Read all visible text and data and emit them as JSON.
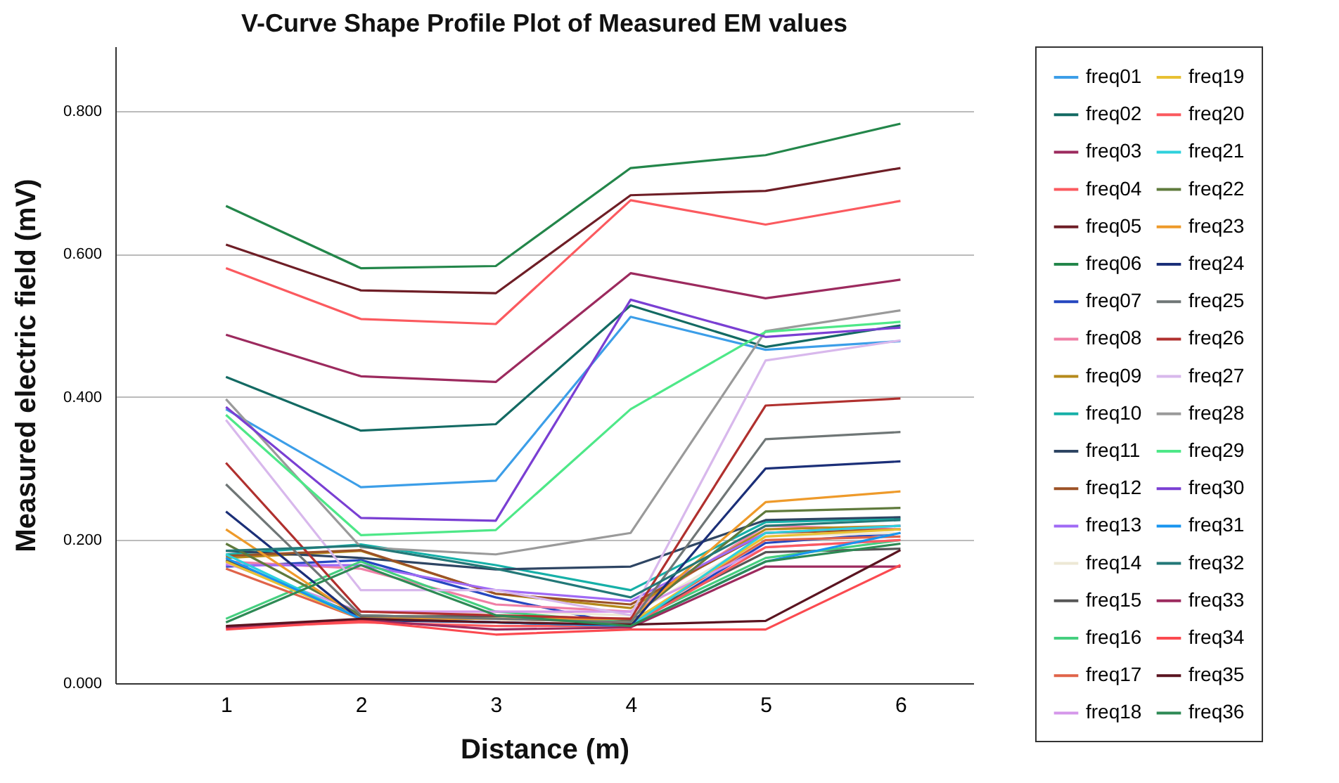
{
  "chart_data": {
    "type": "line",
    "title": "V-Curve Shape Profile Plot of Measured EM values",
    "xlabel": "Distance (m)",
    "ylabel": "Measured electric field (mV)",
    "x": [
      1,
      2,
      3,
      4,
      5,
      6
    ],
    "xlim": [
      0.18,
      6.54
    ],
    "xticks": [
      1,
      2,
      3,
      4,
      5,
      6
    ],
    "ylim": [
      0,
      0.89
    ],
    "yticks": [
      {
        "value": 0,
        "label": "0.000"
      },
      {
        "value": 0.2,
        "label": "0.200"
      },
      {
        "value": 0.4,
        "label": "0.400"
      },
      {
        "value": 0.6,
        "label": "0.600"
      },
      {
        "value": 0.8,
        "label": "0.800"
      }
    ],
    "grid": "y",
    "legend": "right",
    "line_style": "solid",
    "series": [
      {
        "name": "freq01",
        "color": "#3c9ee8",
        "values": [
          0.383,
          0.274,
          0.283,
          0.512,
          0.466,
          0.478
        ]
      },
      {
        "name": "freq02",
        "color": "#136a63",
        "values": [
          0.428,
          0.353,
          0.362,
          0.528,
          0.47,
          0.5
        ]
      },
      {
        "name": "freq03",
        "color": "#9c2a5e",
        "values": [
          0.487,
          0.429,
          0.421,
          0.573,
          0.538,
          0.564
        ]
      },
      {
        "name": "freq04",
        "color": "#fb5a5f",
        "values": [
          0.58,
          0.509,
          0.502,
          0.675,
          0.641,
          0.674
        ]
      },
      {
        "name": "freq05",
        "color": "#6e1e26",
        "values": [
          0.613,
          0.549,
          0.545,
          0.682,
          0.688,
          0.72
        ]
      },
      {
        "name": "freq06",
        "color": "#23864a",
        "values": [
          0.667,
          0.58,
          0.583,
          0.72,
          0.738,
          0.782
        ]
      },
      {
        "name": "freq07",
        "color": "#2547c0",
        "values": [
          0.163,
          0.172,
          0.12,
          0.08,
          0.196,
          0.21
        ]
      },
      {
        "name": "freq08",
        "color": "#f07fa6",
        "values": [
          0.17,
          0.16,
          0.11,
          0.1,
          0.22,
          0.215
        ]
      },
      {
        "name": "freq09",
        "color": "#b58a1c",
        "values": [
          0.175,
          0.185,
          0.125,
          0.105,
          0.215,
          0.22
        ]
      },
      {
        "name": "freq10",
        "color": "#16b0a8",
        "values": [
          0.18,
          0.194,
          0.165,
          0.13,
          0.225,
          0.23
        ]
      },
      {
        "name": "freq11",
        "color": "#2e4563",
        "values": [
          0.185,
          0.175,
          0.159,
          0.163,
          0.228,
          0.232
        ]
      },
      {
        "name": "freq12",
        "color": "#9c5226",
        "values": [
          0.178,
          0.186,
          0.125,
          0.11,
          0.21,
          0.215
        ]
      },
      {
        "name": "freq13",
        "color": "#a06af5",
        "values": [
          0.165,
          0.165,
          0.13,
          0.115,
          0.21,
          0.22
        ]
      },
      {
        "name": "freq14",
        "color": "#ede8d5",
        "values": [
          0.17,
          0.09,
          0.1,
          0.095,
          0.205,
          0.21
        ]
      },
      {
        "name": "freq15",
        "color": "#565656",
        "values": [
          0.172,
          0.093,
          0.094,
          0.088,
          0.183,
          0.188
        ]
      },
      {
        "name": "freq16",
        "color": "#45cf7f",
        "values": [
          0.09,
          0.17,
          0.1,
          0.085,
          0.175,
          0.2
        ]
      },
      {
        "name": "freq17",
        "color": "#e0644a",
        "values": [
          0.16,
          0.09,
          0.09,
          0.085,
          0.2,
          0.205
        ]
      },
      {
        "name": "freq18",
        "color": "#d597ea",
        "values": [
          0.168,
          0.1,
          0.1,
          0.1,
          0.19,
          0.2
        ]
      },
      {
        "name": "freq19",
        "color": "#e8c033",
        "values": [
          0.17,
          0.09,
          0.09,
          0.085,
          0.205,
          0.215
        ]
      },
      {
        "name": "freq20",
        "color": "#fb5a5f",
        "values": [
          0.078,
          0.085,
          0.08,
          0.08,
          0.19,
          0.2
        ]
      },
      {
        "name": "freq21",
        "color": "#2ed1dc",
        "values": [
          0.18,
          0.09,
          0.085,
          0.08,
          0.21,
          0.22
        ]
      },
      {
        "name": "freq22",
        "color": "#5f7a3c",
        "values": [
          0.195,
          0.095,
          0.09,
          0.09,
          0.24,
          0.245
        ]
      },
      {
        "name": "freq23",
        "color": "#ee9a2a",
        "values": [
          0.215,
          0.09,
          0.09,
          0.09,
          0.253,
          0.268
        ]
      },
      {
        "name": "freq24",
        "color": "#1b2f78",
        "values": [
          0.24,
          0.088,
          0.085,
          0.08,
          0.3,
          0.31
        ]
      },
      {
        "name": "freq25",
        "color": "#6f7676",
        "values": [
          0.278,
          0.095,
          0.09,
          0.085,
          0.341,
          0.351
        ]
      },
      {
        "name": "freq26",
        "color": "#b0302e",
        "values": [
          0.308,
          0.1,
          0.095,
          0.09,
          0.388,
          0.398
        ]
      },
      {
        "name": "freq27",
        "color": "#d8b8ec",
        "values": [
          0.368,
          0.13,
          0.13,
          0.095,
          0.451,
          0.479
        ]
      },
      {
        "name": "freq28",
        "color": "#9a9a9a",
        "values": [
          0.397,
          0.19,
          0.18,
          0.21,
          0.492,
          0.521
        ]
      },
      {
        "name": "freq29",
        "color": "#4ee888",
        "values": [
          0.375,
          0.207,
          0.214,
          0.383,
          0.491,
          0.505
        ]
      },
      {
        "name": "freq30",
        "color": "#7a3fd3",
        "values": [
          0.386,
          0.231,
          0.227,
          0.536,
          0.484,
          0.497
        ]
      },
      {
        "name": "freq31",
        "color": "#1895ef",
        "values": [
          0.175,
          0.09,
          0.085,
          0.08,
          0.17,
          0.21
        ]
      },
      {
        "name": "freq32",
        "color": "#237878",
        "values": [
          0.185,
          0.192,
          0.16,
          0.12,
          0.22,
          0.228
        ]
      },
      {
        "name": "freq33",
        "color": "#9c2a5e",
        "values": [
          0.078,
          0.088,
          0.075,
          0.078,
          0.163,
          0.163
        ]
      },
      {
        "name": "freq34",
        "color": "#fb4a50",
        "values": [
          0.075,
          0.087,
          0.068,
          0.075,
          0.075,
          0.165
        ]
      },
      {
        "name": "freq35",
        "color": "#5a1420",
        "values": [
          0.08,
          0.09,
          0.085,
          0.082,
          0.087,
          0.186
        ]
      },
      {
        "name": "freq36",
        "color": "#2e8a55",
        "values": [
          0.085,
          0.165,
          0.095,
          0.08,
          0.17,
          0.195
        ]
      }
    ]
  }
}
